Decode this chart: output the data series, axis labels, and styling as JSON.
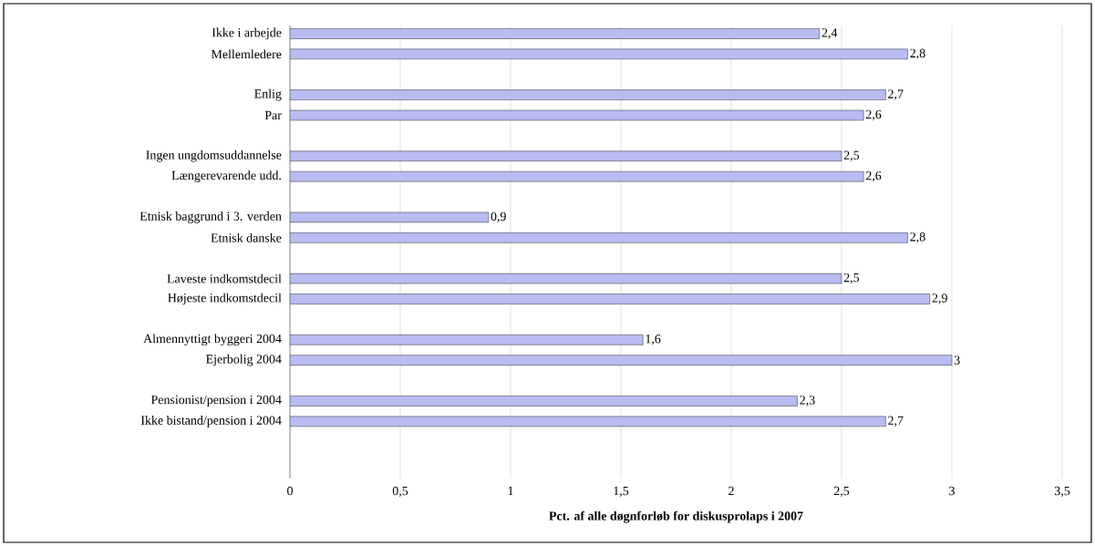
{
  "chart_data": {
    "type": "bar",
    "orientation": "horizontal",
    "xlabel": "Pct. af alle døgnforløb for diskusprolaps i 2007",
    "categories": [
      "Ikke i arbejde",
      "Mellemledere",
      null,
      "Enlig",
      "Par",
      null,
      "Ingen ungdomsuddannelse",
      "Længerevarende udd.",
      null,
      "Etnisk baggrund i 3. verden",
      "Etnisk danske",
      null,
      "Laveste indkomstdecil",
      "Højeste indkomstdecil",
      null,
      "Almennyttigt byggeri 2004",
      "Ejerbolig 2004",
      null,
      "Pensionist/pension i 2004",
      "Ikke bistand/pension i 2004"
    ],
    "values": [
      2.4,
      2.8,
      null,
      2.7,
      2.6,
      null,
      2.5,
      2.6,
      null,
      0.9,
      2.8,
      null,
      2.5,
      2.9,
      null,
      1.6,
      3,
      null,
      2.3,
      2.7
    ],
    "value_labels": [
      "2,4",
      "2,8",
      null,
      "2,7",
      "2,6",
      null,
      "2,5",
      "2,6",
      null,
      "0,9",
      "2,8",
      null,
      "2,5",
      "2,9",
      null,
      "1,6",
      "3",
      null,
      "2,3",
      "2,7"
    ],
    "color": "#b8bcf0",
    "xlim": [
      0,
      3.5
    ],
    "xticks": [
      0,
      {
        "value": 0.5,
        "label": "0,5"
      },
      1,
      {
        "value": 1.5,
        "label": "1,5"
      },
      2,
      {
        "value": 2.5,
        "label": "2,5"
      },
      3,
      {
        "value": 3.5,
        "label": "3,5"
      }
    ],
    "grid": "x"
  }
}
